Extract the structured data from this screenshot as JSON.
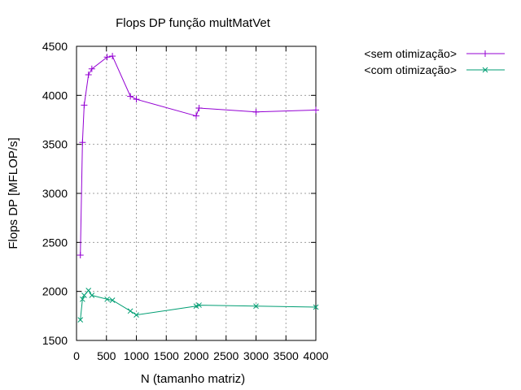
{
  "chart_data": {
    "type": "line",
    "title": "Flops DP função multMatVet",
    "xlabel": "N (tamanho matriz)",
    "ylabel": "Flops DP [MFLOP/s]",
    "xlim": [
      0,
      4000
    ],
    "ylim": [
      1500,
      4500
    ],
    "xticks": [
      0,
      500,
      1000,
      1500,
      2000,
      2500,
      3000,
      3500,
      4000
    ],
    "yticks": [
      1500,
      2000,
      2500,
      3000,
      3500,
      4000,
      4500
    ],
    "grid": true,
    "legend_position": "top-right-outside",
    "series": [
      {
        "name": "<sem otimização>",
        "color": "#9400d3",
        "marker": "plus",
        "x": [
          64,
          100,
          128,
          200,
          256,
          512,
          600,
          900,
          1000,
          2000,
          2048,
          3000,
          4000
        ],
        "y": [
          2370,
          3520,
          3900,
          4210,
          4270,
          4390,
          4400,
          3990,
          3960,
          3790,
          3870,
          3830,
          3850
        ]
      },
      {
        "name": "<com otimização>",
        "color": "#009e73",
        "marker": "x",
        "x": [
          64,
          100,
          128,
          200,
          256,
          512,
          600,
          900,
          1000,
          2000,
          2048,
          3000,
          4000
        ],
        "y": [
          1710,
          1920,
          1960,
          2010,
          1960,
          1920,
          1910,
          1800,
          1760,
          1850,
          1860,
          1850,
          1840
        ]
      }
    ]
  }
}
